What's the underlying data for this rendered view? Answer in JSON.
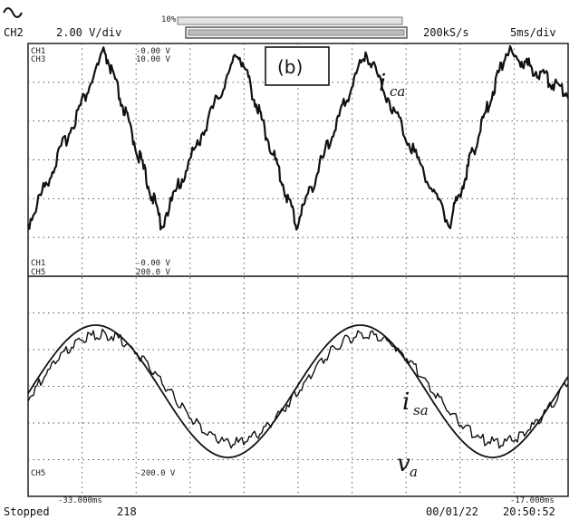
{
  "header": {
    "channel": "CH2",
    "scale": "2.00 V/div",
    "trigger_mark": "10%",
    "sample_rate": "200kS/s",
    "timebase": "5ms/div"
  },
  "panel_label": "(b)",
  "top_panel": {
    "readouts": [
      "CH1",
      "CH3"
    ],
    "values": [
      "-0.00 V",
      "10.00 V"
    ],
    "waveform": {
      "name": "i",
      "subscript": "ca"
    }
  },
  "bottom_panel": {
    "readouts_top": [
      "CH1",
      "CH5"
    ],
    "values_top": [
      "-0.00 V",
      "200.0 V"
    ],
    "readouts_bottom": [
      "CH5"
    ],
    "values_bottom": [
      "-200.0 V"
    ],
    "cursor_left": "-33.000ms",
    "cursor_right": "-17.000ms",
    "waveforms": [
      {
        "name": "i",
        "subscript": "sa"
      },
      {
        "name": "v",
        "subscript": "a"
      }
    ]
  },
  "footer": {
    "status": "Stopped",
    "count": "218",
    "date": "00/01/22",
    "time": "20:50:52"
  },
  "chart_data": {
    "type": "line",
    "grid": true,
    "x_divisions": 10,
    "panels": [
      {
        "series": [
          {
            "name": "ica",
            "shape": "triangle",
            "x": [
              0.0,
              1.42,
              2.47,
              3.9,
              4.97,
              6.25,
              7.8,
              8.85,
              10.0
            ],
            "y": [
              -0.97,
              1.0,
              -0.97,
              1.0,
              -0.97,
              1.0,
              -0.97,
              1.0,
              0.53
            ]
          }
        ]
      },
      {
        "series": [
          {
            "name": "va",
            "amplitude": 1.0,
            "period_div": 4.9,
            "peak_div": 1.25
          },
          {
            "name": "isa",
            "amplitude": 0.82,
            "period_div": 4.9,
            "peak_div": 1.35
          }
        ]
      }
    ]
  }
}
